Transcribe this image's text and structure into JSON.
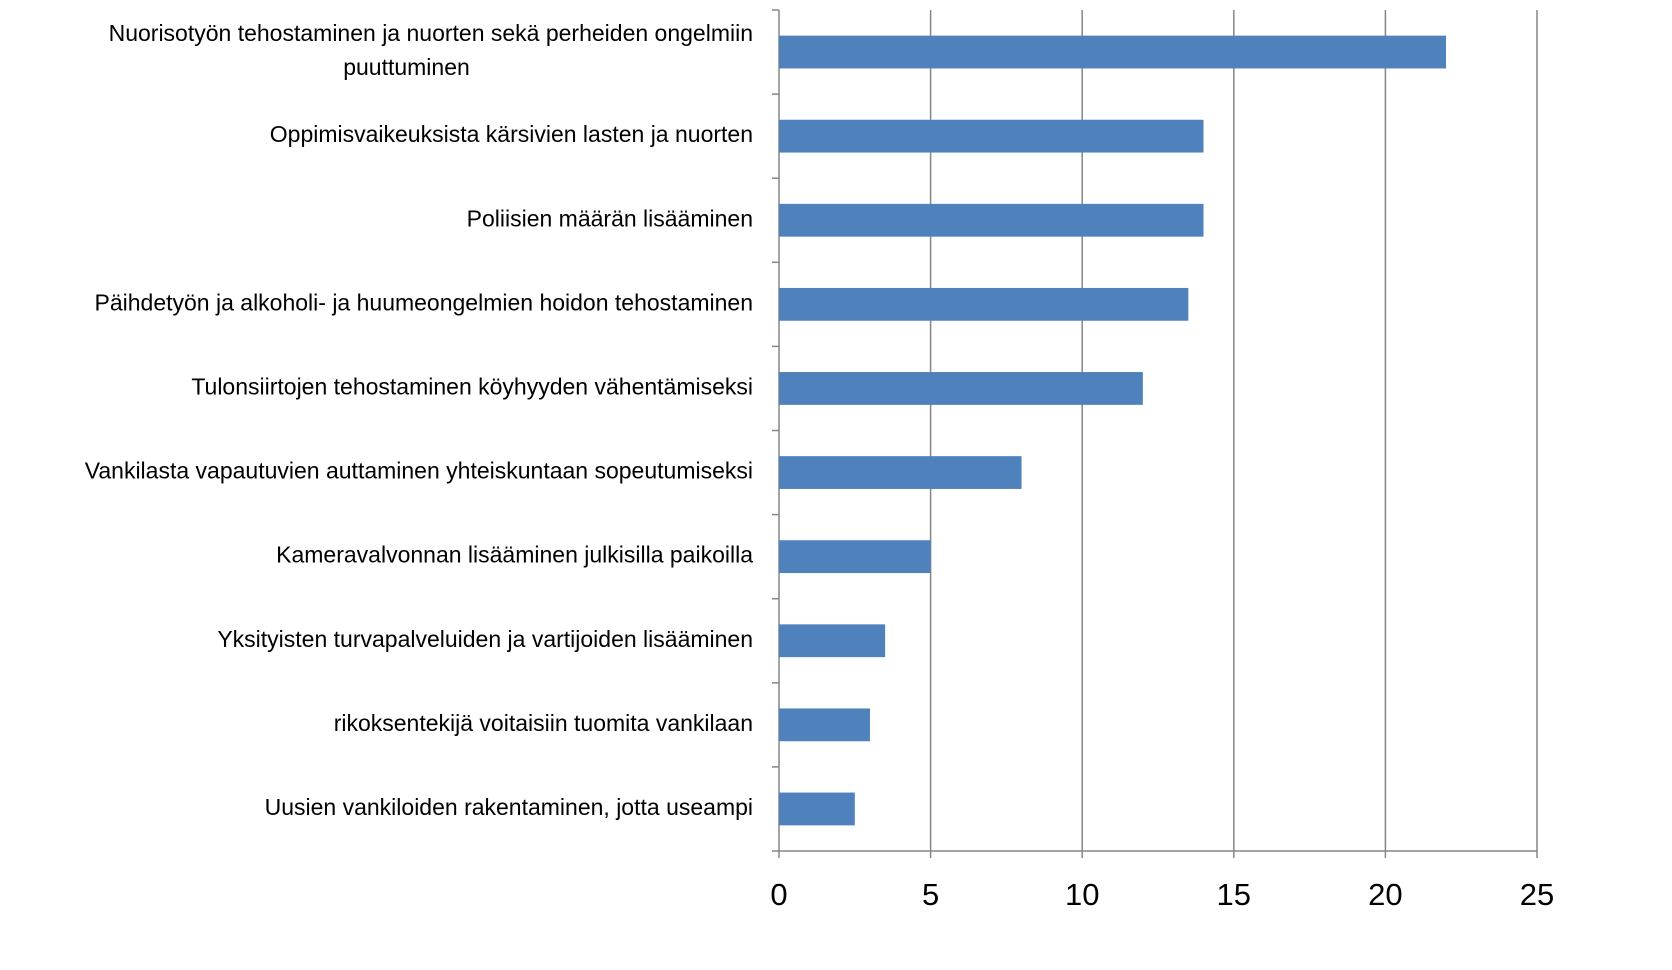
{
  "chart_data": {
    "type": "barh",
    "categories": [
      "Nuorisotyön tehostaminen ja nuorten sekä perheiden ongelmiin puuttuminen",
      "Oppimisvaikeuksista kärsivien lasten ja nuorten",
      "Poliisien määrän lisääminen",
      "Päihdetyön ja alkoholi- ja huumeongelmien hoidon tehostaminen",
      "Tulonsiirtojen tehostaminen köyhyyden vähentämiseksi",
      "Vankilasta vapautuvien auttaminen yhteiskuntaan sopeutumiseksi",
      "Kameravalvonnan lisääminen julkisilla paikoilla",
      "Yksityisten turvapalveluiden ja vartijoiden lisääminen",
      "rikoksentekijä voitaisiin tuomita vankilaan",
      "Uusien vankiloiden rakentaminen, jotta useampi"
    ],
    "values": [
      22,
      14,
      14,
      13.5,
      12,
      8,
      5,
      3.5,
      3,
      2.5
    ],
    "color": "#4f81bd",
    "xlim": [
      0,
      25
    ],
    "xticks": [
      0,
      5,
      10,
      15,
      20,
      25
    ],
    "grid": true
  }
}
